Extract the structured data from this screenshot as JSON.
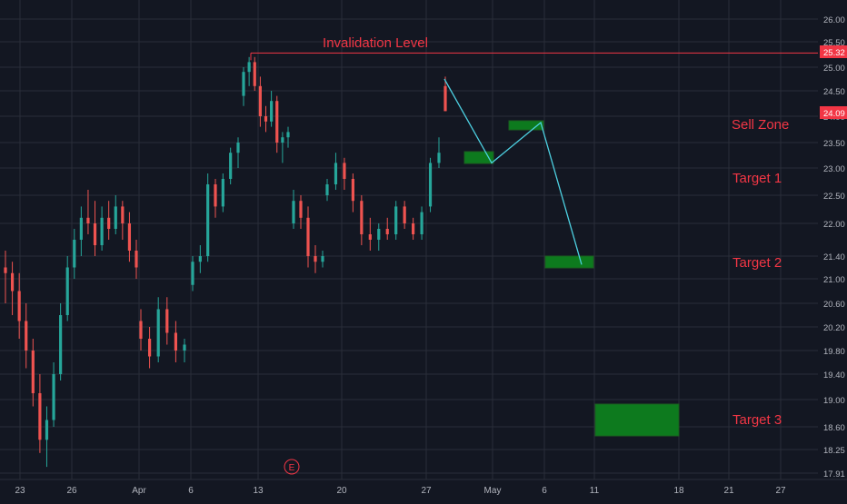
{
  "colors": {
    "background": "#131722",
    "grid": "#2a2e39",
    "axis_text": "#b2b5be",
    "bull": "#26a69a",
    "bear": "#ef5350",
    "annotation_red": "#f23645",
    "zone_green": "#0d7a1e",
    "zone_border": "#1b5e20",
    "projection_line": "#4dd0e1",
    "price_tag": "#f23645",
    "earnings_badge": "#f23645"
  },
  "chart_data": {
    "type": "candlestick",
    "title": "",
    "xlabel": "",
    "ylabel": "",
    "ylim": [
      17.85,
      26.15
    ],
    "grid": true,
    "y_ticks": [
      "26.00",
      "25.50",
      "25.00",
      "24.50",
      "24.00",
      "23.50",
      "23.00",
      "22.50",
      "22.00",
      "21.40",
      "21.00",
      "20.60",
      "20.20",
      "19.80",
      "19.40",
      "19.00",
      "18.60",
      "18.25",
      "17.91"
    ],
    "x_ticks": [
      "23",
      "26",
      "Apr",
      "6",
      "13",
      "20",
      "27",
      "May",
      "6",
      "11",
      "18",
      "21",
      "27"
    ],
    "price_tags": [
      {
        "label": "25.32",
        "value": 25.32
      },
      {
        "label": "24.09",
        "value": 24.09
      }
    ],
    "invalidation": {
      "label": "Invalidation Level",
      "value": 25.28
    },
    "zones": [
      {
        "label": "Sell Zone",
        "value": 23.85
      },
      {
        "label": "Target 1",
        "value": 23.08
      },
      {
        "label": "Target 2",
        "value": 21.34
      },
      {
        "label": "Target 3",
        "value": 18.7
      }
    ],
    "earnings_marker": "E",
    "candles": [
      [
        21.2,
        21.5,
        20.6,
        21.1
      ],
      [
        21.1,
        21.3,
        20.4,
        20.8
      ],
      [
        20.8,
        21.1,
        20.0,
        20.3
      ],
      [
        20.3,
        20.6,
        19.5,
        19.8
      ],
      [
        19.8,
        20.0,
        18.9,
        19.1
      ],
      [
        19.1,
        19.4,
        18.2,
        18.4
      ],
      [
        18.4,
        18.9,
        18.0,
        18.7
      ],
      [
        18.7,
        19.6,
        18.6,
        19.4
      ],
      [
        19.4,
        20.6,
        19.3,
        20.4
      ],
      [
        20.4,
        21.4,
        20.3,
        21.2
      ],
      [
        21.2,
        21.9,
        21.0,
        21.7
      ],
      [
        21.7,
        22.3,
        21.4,
        22.1
      ],
      [
        22.1,
        22.6,
        21.8,
        22.0
      ],
      [
        22.0,
        22.4,
        21.4,
        21.6
      ],
      [
        21.6,
        22.3,
        21.5,
        22.1
      ],
      [
        22.1,
        22.4,
        21.7,
        21.9
      ],
      [
        21.9,
        22.5,
        21.8,
        22.3
      ],
      [
        22.3,
        22.4,
        21.7,
        22.0
      ],
      [
        22.0,
        22.2,
        21.3,
        21.5
      ],
      [
        21.5,
        21.7,
        21.0,
        21.2
      ],
      [
        20.3,
        20.5,
        19.8,
        20.0
      ],
      [
        20.0,
        20.2,
        19.5,
        19.7
      ],
      [
        19.7,
        20.7,
        19.6,
        20.5
      ],
      [
        20.5,
        20.7,
        19.9,
        20.1
      ],
      [
        20.1,
        20.3,
        19.6,
        19.8
      ],
      [
        19.8,
        20.0,
        19.6,
        19.9
      ],
      [
        20.9,
        21.4,
        20.8,
        21.3
      ],
      [
        21.3,
        21.6,
        21.1,
        21.4
      ],
      [
        21.4,
        22.9,
        21.3,
        22.7
      ],
      [
        22.7,
        22.8,
        22.1,
        22.3
      ],
      [
        22.3,
        22.9,
        22.2,
        22.8
      ],
      [
        22.8,
        23.4,
        22.7,
        23.3
      ],
      [
        23.3,
        23.6,
        23.0,
        23.5
      ],
      [
        24.4,
        25.0,
        24.2,
        24.9
      ],
      [
        24.9,
        25.2,
        24.6,
        25.1
      ],
      [
        25.1,
        25.2,
        24.5,
        24.6
      ],
      [
        24.6,
        24.8,
        23.8,
        24.0
      ],
      [
        24.0,
        24.2,
        23.7,
        23.9
      ],
      [
        23.9,
        24.5,
        23.8,
        24.3
      ],
      [
        24.3,
        24.4,
        23.3,
        23.5
      ],
      [
        23.5,
        23.7,
        23.1,
        23.6
      ],
      [
        23.6,
        23.8,
        23.4,
        23.7
      ],
      [
        22.0,
        22.6,
        21.9,
        22.4
      ],
      [
        22.4,
        22.5,
        21.9,
        22.1
      ],
      [
        22.1,
        22.3,
        21.2,
        21.4
      ],
      [
        21.4,
        21.6,
        21.1,
        21.3
      ],
      [
        21.3,
        21.5,
        21.2,
        21.4
      ],
      [
        22.5,
        22.8,
        22.4,
        22.7
      ],
      [
        22.7,
        23.3,
        22.6,
        23.1
      ],
      [
        23.1,
        23.2,
        22.6,
        22.8
      ],
      [
        22.8,
        22.9,
        22.2,
        22.4
      ],
      [
        22.4,
        22.5,
        21.6,
        21.8
      ],
      [
        21.8,
        22.1,
        21.5,
        21.7
      ],
      [
        21.7,
        22.0,
        21.5,
        21.9
      ],
      [
        21.9,
        22.1,
        21.7,
        21.8
      ],
      [
        21.8,
        22.4,
        21.7,
        22.3
      ],
      [
        22.3,
        22.4,
        21.9,
        22.0
      ],
      [
        22.0,
        22.1,
        21.7,
        21.8
      ],
      [
        21.8,
        22.3,
        21.7,
        22.2
      ],
      [
        22.3,
        23.2,
        22.2,
        23.1
      ],
      [
        23.1,
        23.6,
        23.0,
        23.3
      ],
      [
        24.6,
        24.8,
        24.1,
        24.1
      ]
    ],
    "projection_path": [
      [
        62,
        24.75
      ],
      [
        67.5,
        23.1
      ],
      [
        72,
        23.88
      ],
      [
        78,
        21.25
      ]
    ]
  }
}
